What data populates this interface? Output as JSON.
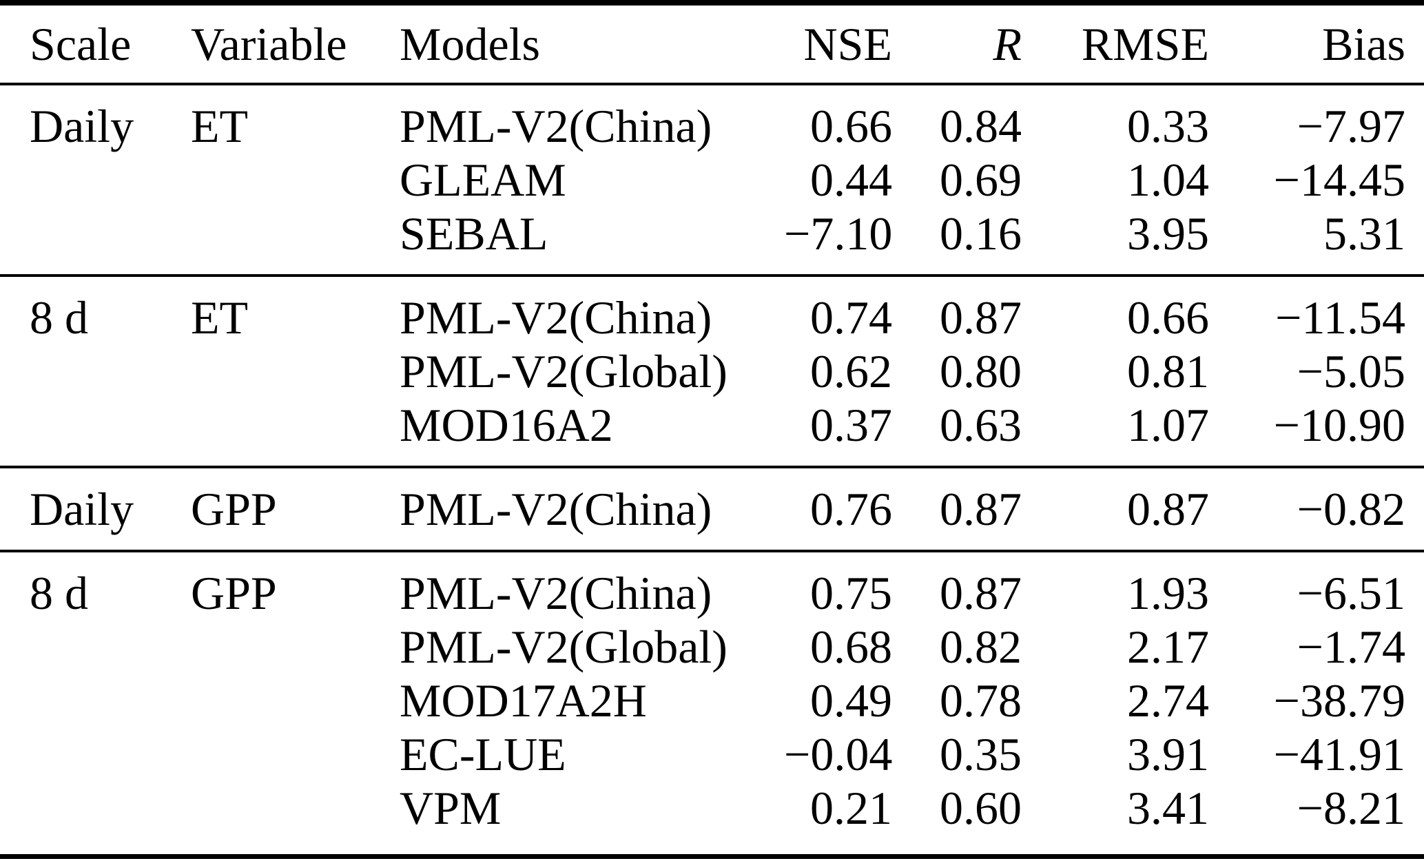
{
  "table": {
    "colors": {
      "text": "#000000",
      "background": "#ffffff",
      "rule": "#000000"
    },
    "headers": {
      "scale": "Scale",
      "variable": "Variable",
      "models": "Models",
      "nse": "NSE",
      "r": "R",
      "rmse": "RMSE",
      "bias": "Bias"
    },
    "groups": [
      {
        "scale": "Daily",
        "variable": "ET",
        "rows": [
          {
            "model": "PML-V2(China)",
            "nse": "0.66",
            "r": "0.84",
            "rmse": "0.33",
            "bias": "−7.97"
          },
          {
            "model": "GLEAM",
            "nse": "0.44",
            "r": "0.69",
            "rmse": "1.04",
            "bias": "−14.45"
          },
          {
            "model": "SEBAL",
            "nse": "−7.10",
            "r": "0.16",
            "rmse": "3.95",
            "bias": "5.31"
          }
        ]
      },
      {
        "scale": "8 d",
        "variable": "ET",
        "rows": [
          {
            "model": "PML-V2(China)",
            "nse": "0.74",
            "r": "0.87",
            "rmse": "0.66",
            "bias": "−11.54"
          },
          {
            "model": "PML-V2(Global)",
            "nse": "0.62",
            "r": "0.80",
            "rmse": "0.81",
            "bias": "−5.05"
          },
          {
            "model": "MOD16A2",
            "nse": "0.37",
            "r": "0.63",
            "rmse": "1.07",
            "bias": "−10.90"
          }
        ]
      },
      {
        "scale": "Daily",
        "variable": "GPP",
        "rows": [
          {
            "model": "PML-V2(China)",
            "nse": "0.76",
            "r": "0.87",
            "rmse": "0.87",
            "bias": "−0.82"
          }
        ]
      },
      {
        "scale": "8 d",
        "variable": "GPP",
        "rows": [
          {
            "model": "PML-V2(China)",
            "nse": "0.75",
            "r": "0.87",
            "rmse": "1.93",
            "bias": "−6.51"
          },
          {
            "model": "PML-V2(Global)",
            "nse": "0.68",
            "r": "0.82",
            "rmse": "2.17",
            "bias": "−1.74"
          },
          {
            "model": "MOD17A2H",
            "nse": "0.49",
            "r": "0.78",
            "rmse": "2.74",
            "bias": "−38.79"
          },
          {
            "model": "EC-LUE",
            "nse": "−0.04",
            "r": "0.35",
            "rmse": "3.91",
            "bias": "−41.91"
          },
          {
            "model": "VPM",
            "nse": "0.21",
            "r": "0.60",
            "rmse": "3.41",
            "bias": "−8.21"
          }
        ]
      }
    ]
  }
}
